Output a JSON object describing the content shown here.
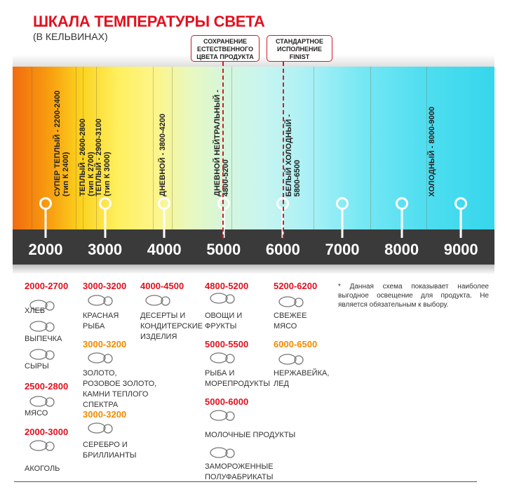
{
  "title": "ШКАЛА ТЕМПЕРАТУРЫ СВЕТА",
  "subtitle": "(В КЕЛЬВИНАХ)",
  "callouts": [
    "СОХРАНЕНИЕ\nЕСТЕСТВЕННОГО\nЦВЕТА ПРОДУКТА",
    "СТАНДАРТНОЕ\nИСПОЛНЕНИЕ\nFINIST"
  ],
  "scale": [
    "2000",
    "3000",
    "4000",
    "5000",
    "6000",
    "7000",
    "8000",
    "9000"
  ],
  "bands": [
    "СУПЕР ТЕПЛЫЙ - 2200-2400\n(тип К 2400)",
    "ТЕПЛЫЙ - 2600-2800\n(тип К 2700)",
    "ТЕПЛЫЙ - 2900-3100\n(тип К 3000)",
    "ДНЕВНОЙ - 3800-4200",
    "ДНЕВНОЙ НЕЙТРАЛЬНЫЙ -\n4800-5200",
    "БЕЛЫЙ ХОЛОДНЫЙ -\n5800-6500",
    "ХОЛОДНЫЙ - 8000-9000"
  ],
  "colors": {
    "red": "#e3101e",
    "orange": "#f08a00",
    "accent": "#d01a28"
  },
  "groups": [
    {
      "range": "2000-2700",
      "color": "red",
      "items": [
        {
          "icon": "bread-icon",
          "label": "ХЛЕБ"
        },
        {
          "icon": "croissant-icon",
          "label": "ВЫПЕЧКА"
        },
        {
          "icon": "cheese-icon",
          "label": "СЫРЫ"
        }
      ]
    },
    {
      "range": "2500-2800",
      "color": "red",
      "items": [
        {
          "icon": "steak-icon",
          "label": "МЯСО"
        }
      ]
    },
    {
      "range": "2000-3000",
      "color": "red",
      "items": [
        {
          "icon": "wine-bottle-icon",
          "label": "АКОГОЛЬ"
        }
      ]
    },
    {
      "range": "3000-3200",
      "color": "red",
      "items": [
        {
          "icon": "fish-icon",
          "label": "КРАСНАЯ\nРЫБА"
        }
      ]
    },
    {
      "range": "3000-3200",
      "color": "orange",
      "items": [
        {
          "icon": "rings-icon",
          "label": "ЗОЛОТО,\nРОЗОВОЕ ЗОЛОТО,\nКАМНИ ТЕПЛОГО\nСПЕКТРА"
        }
      ]
    },
    {
      "range": "3000-3200",
      "color": "orange",
      "items": [
        {
          "icon": "diamond-icon",
          "label": "СЕРЕБРО И\nБРИЛЛИАНТЫ"
        }
      ]
    },
    {
      "range": "4000-4500",
      "color": "red",
      "items": [
        {
          "icon": "cake-icon",
          "label": "ДЕСЕРТЫ И\nКОНДИТЕРСКИЕ\nИЗДЕЛИЯ"
        }
      ]
    },
    {
      "range": "4800-5200",
      "color": "red",
      "items": [
        {
          "icon": "vegetables-icon",
          "label": "ОВОЩИ И\nФРУКТЫ"
        }
      ]
    },
    {
      "range": "5000-5500",
      "color": "red",
      "items": [
        {
          "icon": "seafood-icon",
          "label": "РЫБА И\nМОРЕПРОДУКТЫ"
        }
      ]
    },
    {
      "range": "5000-6000",
      "color": "red",
      "items": [
        {
          "icon": "milk-icon",
          "label": "МОЛОЧНЫЕ ПРОДУКТЫ"
        },
        {
          "icon": "frozen-food-icon",
          "label": "ЗАМОРОЖЕННЫЕ\nПОЛУФАБРИКАТЫ"
        }
      ]
    },
    {
      "range": "5200-6200",
      "color": "red",
      "items": [
        {
          "icon": "fresh-meat-icon",
          "label": "СВЕЖЕЕ\nМЯСО"
        }
      ]
    },
    {
      "range": "6000-6500",
      "color": "orange",
      "items": [
        {
          "icon": "ice-icon",
          "label": "НЕРЖАВЕЙКА,\nЛЕД"
        }
      ]
    }
  ],
  "note": "* Данная схема показывает наиболее выгодное освещение для продукта. Не является обязательным к выбору."
}
